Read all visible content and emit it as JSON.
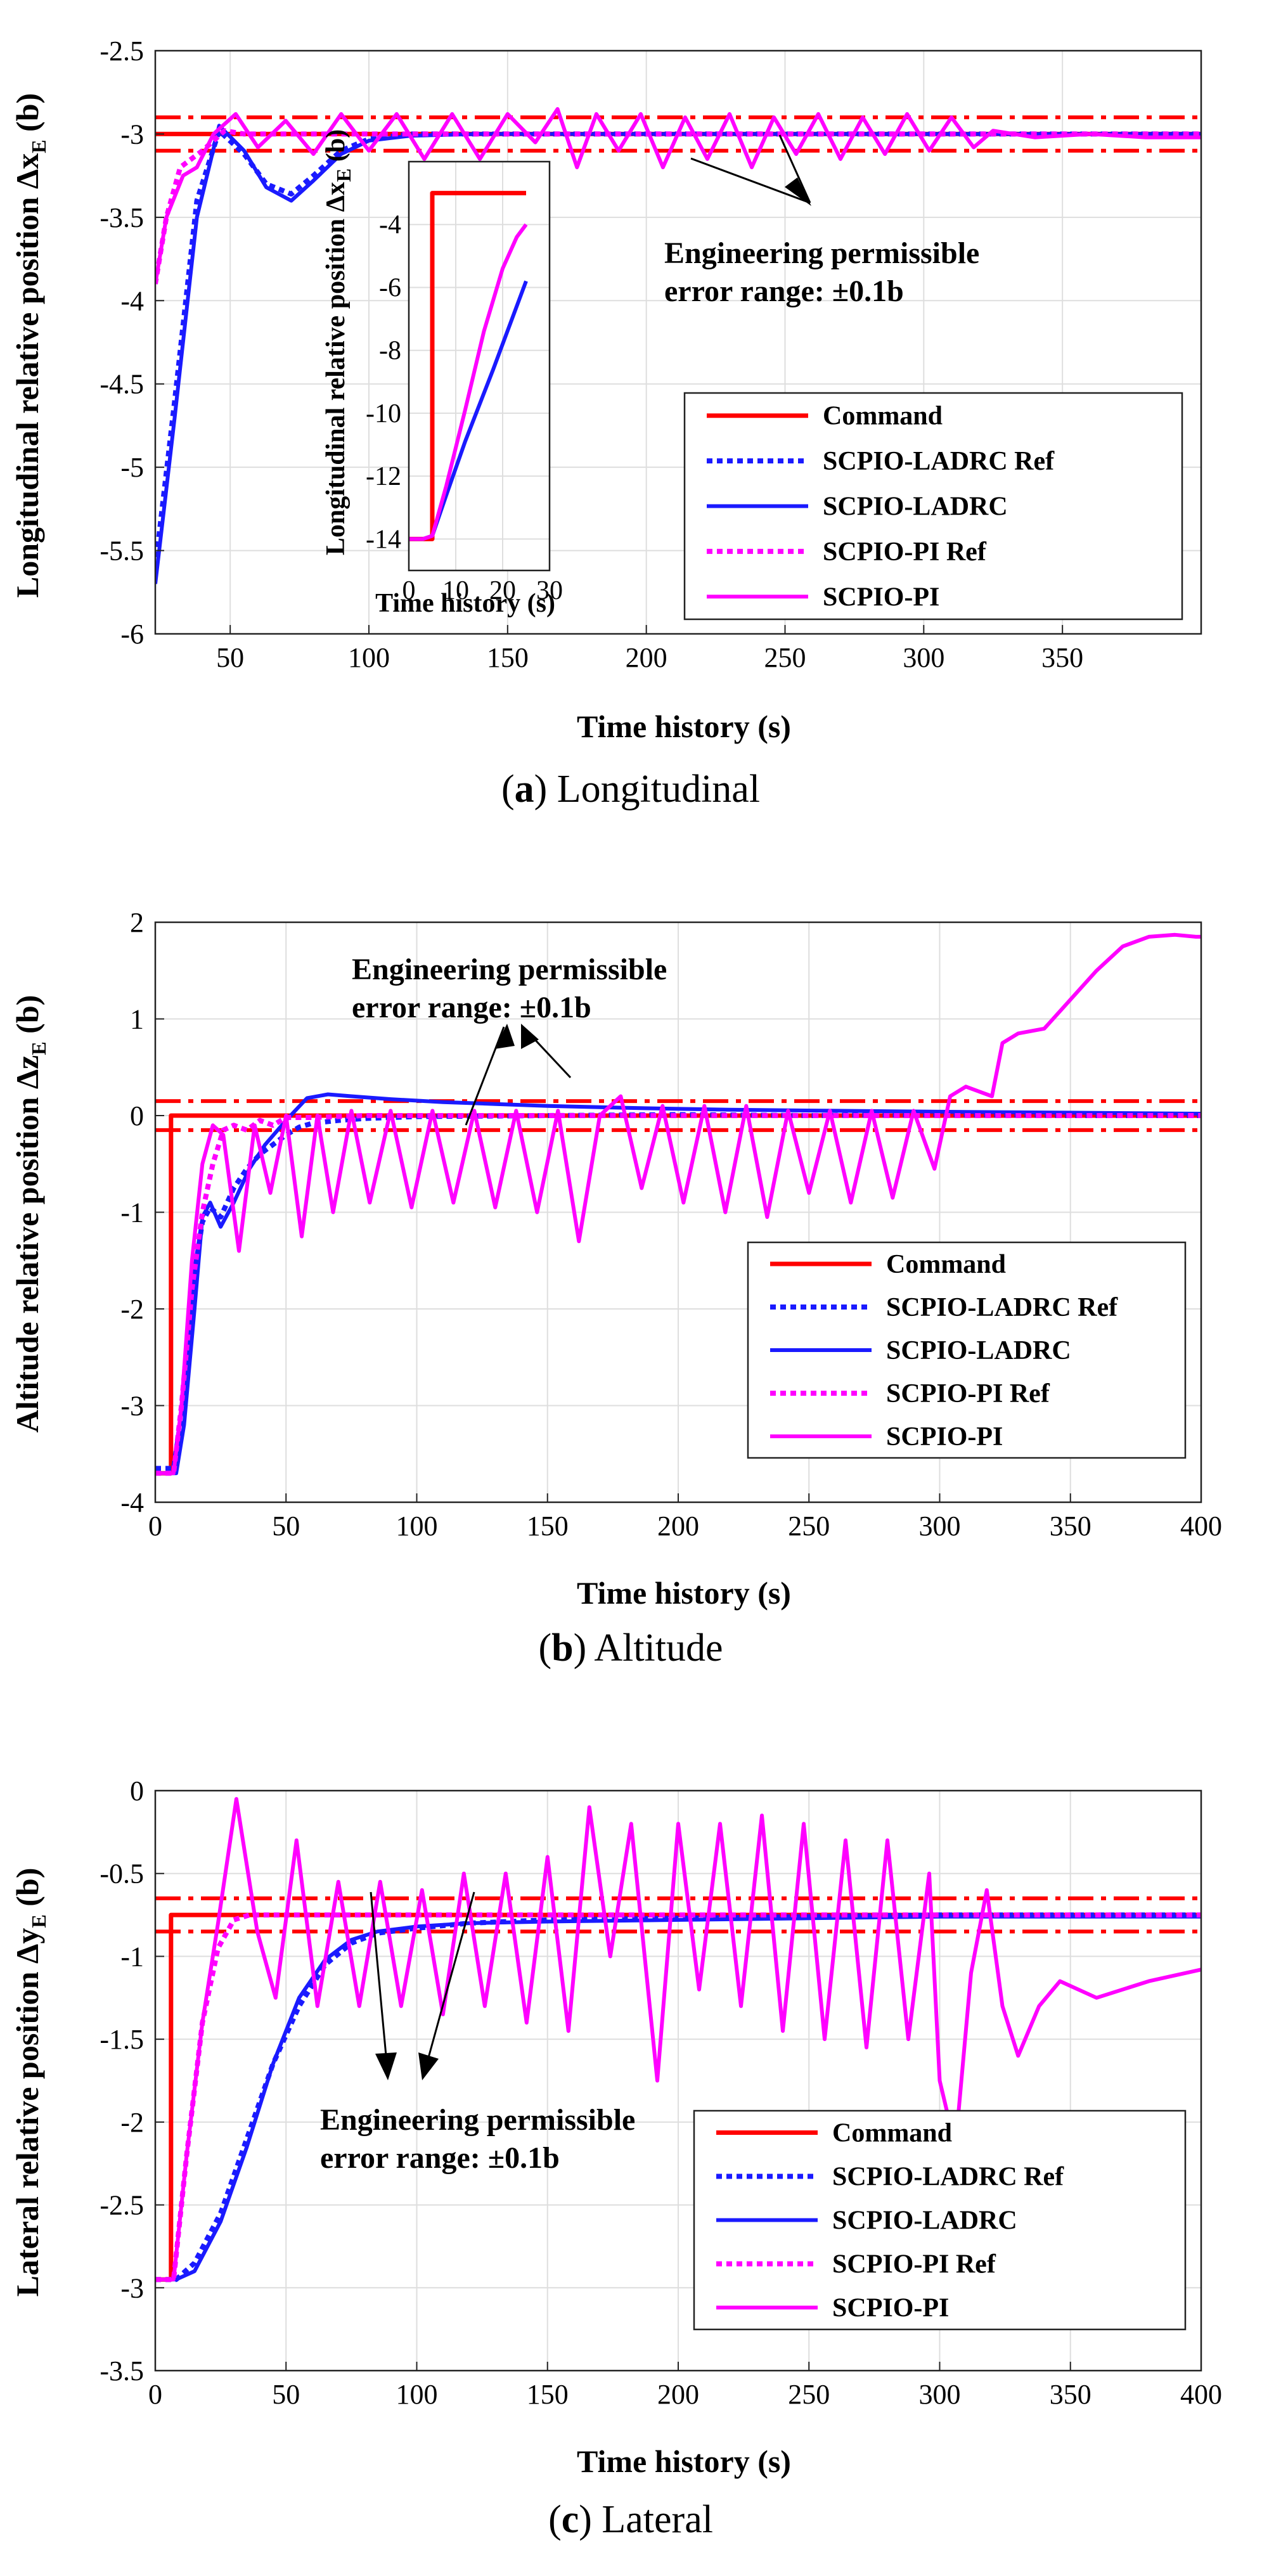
{
  "chart_data": [
    {
      "type": "line",
      "id": "a",
      "caption_letter": "a",
      "caption_text": "Longitudinal",
      "ylabel_main": "Longitudinal relative position Δx",
      "ylabel_sub": "E",
      "ylabel_unit": "(b)",
      "xlabel": "Time history (s)",
      "xlim": [
        23,
        400
      ],
      "ylim": [
        -6,
        -2.5
      ],
      "xticks": [
        50,
        100,
        150,
        200,
        250,
        300,
        350
      ],
      "yticks": [
        -6,
        -5.5,
        -5,
        -4.5,
        -4,
        -3.5,
        -3,
        -2.5
      ],
      "legend": [
        "Command",
        "SCPIO-LADRC Ref",
        "SCPIO-LADRC",
        "SCPIO-PI Ref",
        "SCPIO-PI"
      ],
      "annotation_lines": [
        "Engineering permissible",
        "error range: ±0.1b"
      ],
      "command_value": -3,
      "tolerance_band": [
        -3.1,
        -2.9
      ],
      "series": [
        {
          "name": "SCPIO-LADRC Ref",
          "x": [
            23,
            30,
            38,
            46,
            55,
            63,
            72,
            80,
            90,
            100,
            115,
            140,
            400
          ],
          "y": [
            -5.6,
            -4.6,
            -3.4,
            -2.98,
            -3.12,
            -3.3,
            -3.36,
            -3.25,
            -3.1,
            -3.03,
            -3.0,
            -3.0,
            -3.0
          ]
        },
        {
          "name": "SCPIO-LADRC",
          "x": [
            23,
            30,
            38,
            46,
            55,
            63,
            72,
            80,
            90,
            100,
            115,
            140,
            400
          ],
          "y": [
            -5.7,
            -4.7,
            -3.5,
            -2.95,
            -3.1,
            -3.32,
            -3.4,
            -3.28,
            -3.12,
            -3.04,
            -3.01,
            -3.0,
            -3.0
          ]
        },
        {
          "name": "SCPIO-PI Ref",
          "x": [
            23,
            27,
            32,
            40,
            48,
            55,
            100,
            400
          ],
          "y": [
            -3.9,
            -3.5,
            -3.2,
            -3.1,
            -2.98,
            -3.0,
            -3.0,
            -3.0
          ]
        },
        {
          "name": "SCPIO-PI",
          "x": [
            23,
            27,
            33,
            38,
            44,
            52,
            60,
            70,
            80,
            90,
            100,
            110,
            120,
            130,
            140,
            150,
            160,
            168,
            175,
            182,
            190,
            198,
            206,
            214,
            222,
            230,
            238,
            246,
            254,
            262,
            270,
            278,
            286,
            294,
            302,
            310,
            318,
            325,
            340,
            360,
            380,
            400
          ],
          "y": [
            -3.9,
            -3.5,
            -3.25,
            -3.2,
            -3.0,
            -2.88,
            -3.08,
            -2.92,
            -3.12,
            -2.88,
            -3.1,
            -2.88,
            -3.15,
            -2.88,
            -3.15,
            -2.88,
            -3.05,
            -2.85,
            -3.2,
            -2.88,
            -3.1,
            -2.88,
            -3.2,
            -2.9,
            -3.15,
            -2.88,
            -3.2,
            -2.9,
            -3.12,
            -2.88,
            -3.15,
            -2.9,
            -3.12,
            -2.88,
            -3.1,
            -2.9,
            -3.08,
            -2.98,
            -3.02,
            -3.0,
            -3.02,
            -3.02
          ]
        }
      ],
      "inset": {
        "xlim": [
          0,
          30
        ],
        "ylim": [
          -15,
          -2
        ],
        "xticks": [
          0,
          10,
          20,
          30
        ],
        "yticks": [
          -14,
          -12,
          -10,
          -8,
          -6,
          -4
        ],
        "ylabel": "Longitudinal relative position Δx",
        "ylabel_sub": "E",
        "ylabel_unit": "(b)",
        "xlabel": "Time history (s)",
        "series": [
          {
            "name": "Command",
            "x": [
              0,
              5,
              5,
              25
            ],
            "y": [
              -14,
              -14,
              -3,
              -3
            ]
          },
          {
            "name": "SCPIO-LADRC",
            "x": [
              0,
              3,
              5,
              8,
              12,
              18,
              25
            ],
            "y": [
              -14,
              -14,
              -13.9,
              -12.6,
              -10.9,
              -8.6,
              -5.8
            ]
          },
          {
            "name": "SCPIO-PI",
            "x": [
              0,
              3,
              5,
              8,
              12,
              16,
              20,
              23,
              25
            ],
            "y": [
              -14,
              -14,
              -13.9,
              -12.3,
              -9.9,
              -7.4,
              -5.4,
              -4.4,
              -4.0
            ]
          }
        ]
      }
    },
    {
      "type": "line",
      "id": "b",
      "caption_letter": "b",
      "caption_text": "Altitude",
      "ylabel_main": "Altitude relative position Δz",
      "ylabel_sub": "E",
      "ylabel_unit": "(b)",
      "xlabel": "Time history (s)",
      "xlim": [
        0,
        400
      ],
      "ylim": [
        -4,
        2
      ],
      "xticks": [
        0,
        50,
        100,
        150,
        200,
        250,
        300,
        350,
        400
      ],
      "yticks": [
        -4,
        -3,
        -2,
        -1,
        0,
        1,
        2
      ],
      "legend": [
        "Command",
        "SCPIO-LADRC Ref",
        "SCPIO-LADRC",
        "SCPIO-PI Ref",
        "SCPIO-PI"
      ],
      "annotation_lines": [
        "Engineering permissible",
        "error range: ±0.1b"
      ],
      "command_value": 0,
      "tolerance_band": [
        -0.15,
        0.15
      ],
      "series": [
        {
          "name": "Command",
          "x": [
            0,
            6,
            6,
            400
          ],
          "y": [
            -3.7,
            -3.7,
            0,
            0
          ]
        },
        {
          "name": "SCPIO-LADRC Ref",
          "x": [
            0,
            7,
            10,
            14,
            18,
            21,
            25,
            30,
            35,
            40,
            45,
            50,
            55,
            60,
            70,
            80,
            90,
            100,
            150,
            200,
            250,
            300,
            350,
            400
          ],
          "y": [
            -3.65,
            -3.65,
            -3.1,
            -1.8,
            -1.1,
            -0.95,
            -1.05,
            -0.75,
            -0.55,
            -0.4,
            -0.3,
            -0.2,
            -0.12,
            -0.08,
            -0.05,
            -0.03,
            -0.02,
            -0.01,
            0.0,
            0.01,
            0.0,
            0.01,
            0.0,
            0.0
          ]
        },
        {
          "name": "SCPIO-LADRC",
          "x": [
            0,
            8,
            11,
            15,
            18,
            21,
            25,
            30,
            36,
            42,
            50,
            58,
            66,
            75,
            90,
            110,
            130,
            150,
            180,
            220,
            260,
            300,
            350,
            400
          ],
          "y": [
            -3.7,
            -3.7,
            -3.2,
            -2.0,
            -1.05,
            -0.9,
            -1.15,
            -0.9,
            -0.55,
            -0.3,
            -0.05,
            0.18,
            0.22,
            0.2,
            0.17,
            0.14,
            0.12,
            0.1,
            0.08,
            0.06,
            0.05,
            0.04,
            0.03,
            0.02
          ]
        },
        {
          "name": "SCPIO-PI Ref",
          "x": [
            0,
            7,
            10,
            14,
            18,
            22,
            26,
            30,
            35,
            40,
            45,
            50,
            60,
            80,
            100,
            400
          ],
          "y": [
            -3.7,
            -3.7,
            -3.0,
            -1.8,
            -1.0,
            -0.5,
            -0.15,
            -0.1,
            -0.15,
            -0.05,
            -0.1,
            -0.02,
            -0.02,
            0.0,
            0.0,
            0.0
          ]
        },
        {
          "name": "SCPIO-PI",
          "x": [
            0,
            7,
            10,
            14,
            18,
            22,
            26,
            32,
            38,
            44,
            50,
            56,
            62,
            68,
            75,
            82,
            90,
            98,
            106,
            114,
            122,
            130,
            138,
            146,
            154,
            162,
            170,
            178,
            186,
            194,
            202,
            210,
            218,
            226,
            234,
            242,
            250,
            258,
            266,
            274,
            282,
            290,
            298,
            304,
            310,
            315,
            320,
            324,
            330,
            340,
            350,
            360,
            370,
            380,
            390,
            398,
            400
          ],
          "y": [
            -3.7,
            -3.7,
            -3.0,
            -1.5,
            -0.5,
            -0.1,
            -0.2,
            -1.4,
            -0.1,
            -0.8,
            0.0,
            -1.25,
            0.0,
            -1.0,
            0.05,
            -0.9,
            0.05,
            -0.95,
            0.05,
            -0.9,
            0.05,
            -0.95,
            0.05,
            -1.0,
            0.05,
            -1.3,
            0.0,
            0.2,
            -0.75,
            0.1,
            -0.9,
            0.1,
            -1.0,
            0.1,
            -1.05,
            0.05,
            -0.8,
            0.05,
            -0.9,
            0.05,
            -0.85,
            0.05,
            -0.55,
            0.2,
            0.3,
            0.25,
            0.2,
            0.75,
            0.85,
            0.9,
            1.2,
            1.5,
            1.75,
            1.85,
            1.87,
            1.85,
            1.85
          ]
        }
      ]
    },
    {
      "type": "line",
      "id": "c",
      "caption_letter": "c",
      "caption_text": "Lateral",
      "ylabel_main": "Lateral relative position Δy",
      "ylabel_sub": "E",
      "ylabel_unit": "(b)",
      "xlabel": "Time history (s)",
      "xlim": [
        0,
        400
      ],
      "ylim": [
        -3.5,
        0
      ],
      "xticks": [
        0,
        50,
        100,
        150,
        200,
        250,
        300,
        350,
        400
      ],
      "yticks": [
        -3.5,
        -3,
        -2.5,
        -2,
        -1.5,
        -1,
        -0.5,
        0
      ],
      "legend": [
        "Command",
        "SCPIO-LADRC Ref",
        "SCPIO-LADRC",
        "SCPIO-PI Ref",
        "SCPIO-PI"
      ],
      "annotation_lines": [
        "Engineering permissible",
        "error range: ±0.1b"
      ],
      "command_value": -0.75,
      "tolerance_band": [
        -0.85,
        -0.65
      ],
      "series": [
        {
          "name": "Command",
          "x": [
            0,
            6,
            6,
            400
          ],
          "y": [
            -2.95,
            -2.95,
            -0.75,
            -0.75
          ]
        },
        {
          "name": "SCPIO-LADRC Ref",
          "x": [
            0,
            8,
            15,
            25,
            35,
            45,
            55,
            65,
            75,
            85,
            100,
            120,
            150,
            200,
            250,
            300,
            400
          ],
          "y": [
            -2.95,
            -2.95,
            -2.85,
            -2.55,
            -2.1,
            -1.65,
            -1.3,
            -1.05,
            -0.92,
            -0.86,
            -0.83,
            -0.8,
            -0.78,
            -0.77,
            -0.76,
            -0.75,
            -0.75
          ]
        },
        {
          "name": "SCPIO-LADRC",
          "x": [
            0,
            8,
            15,
            25,
            35,
            45,
            55,
            65,
            75,
            85,
            100,
            120,
            150,
            200,
            250,
            300,
            400
          ],
          "y": [
            -2.95,
            -2.95,
            -2.9,
            -2.6,
            -2.15,
            -1.65,
            -1.25,
            -1.02,
            -0.9,
            -0.85,
            -0.82,
            -0.8,
            -0.79,
            -0.78,
            -0.77,
            -0.76,
            -0.76
          ]
        },
        {
          "name": "SCPIO-PI Ref",
          "x": [
            0,
            7,
            12,
            18,
            24,
            30,
            36,
            45,
            60,
            400
          ],
          "y": [
            -2.95,
            -2.95,
            -2.2,
            -1.4,
            -0.95,
            -0.78,
            -0.75,
            -0.75,
            -0.75,
            -0.75
          ]
        },
        {
          "name": "SCPIO-PI",
          "x": [
            0,
            7,
            12,
            18,
            24,
            31,
            39,
            46,
            54,
            62,
            70,
            78,
            86,
            94,
            102,
            110,
            118,
            126,
            134,
            142,
            150,
            158,
            166,
            174,
            182,
            192,
            200,
            208,
            216,
            224,
            232,
            240,
            248,
            256,
            264,
            272,
            280,
            288,
            296,
            300,
            306,
            312,
            318,
            324,
            330,
            338,
            346,
            360,
            380,
            400
          ],
          "y": [
            -2.95,
            -2.95,
            -2.2,
            -1.4,
            -0.8,
            -0.05,
            -0.85,
            -1.25,
            -0.3,
            -1.3,
            -0.55,
            -1.3,
            -0.55,
            -1.3,
            -0.6,
            -1.35,
            -0.5,
            -1.3,
            -0.5,
            -1.4,
            -0.4,
            -1.45,
            -0.1,
            -1.0,
            -0.2,
            -1.75,
            -0.2,
            -1.2,
            -0.2,
            -1.3,
            -0.15,
            -1.45,
            -0.2,
            -1.5,
            -0.3,
            -1.55,
            -0.3,
            -1.5,
            -0.5,
            -1.75,
            -2.15,
            -1.1,
            -0.6,
            -1.3,
            -1.6,
            -1.3,
            -1.15,
            -1.25,
            -1.15,
            -1.08
          ]
        }
      ]
    }
  ]
}
